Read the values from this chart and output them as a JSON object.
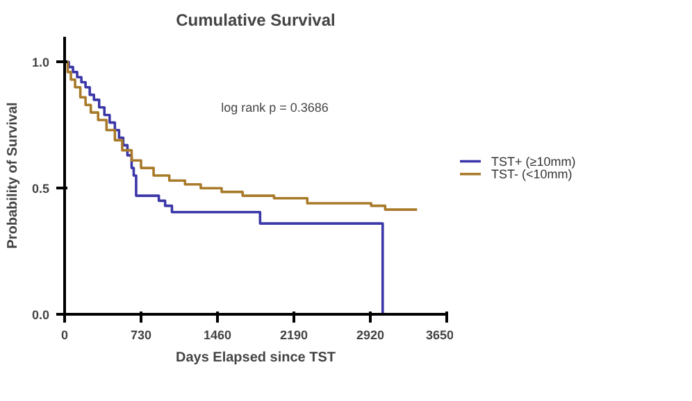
{
  "chart_data": {
    "type": "step",
    "title": "Cumulative Survival",
    "xlabel": "Days Elapsed since TST",
    "ylabel": "Probability of Survival",
    "xlim": [
      0,
      3650
    ],
    "ylim": [
      0,
      1.1
    ],
    "xticks": [
      0,
      730,
      1460,
      2190,
      2920,
      3650
    ],
    "yticks": [
      {
        "value": 0,
        "label": "0.0"
      },
      {
        "value": 0.5,
        "label": "0.5"
      },
      {
        "value": 1,
        "label": "1.0"
      }
    ],
    "annotations": [
      "log rank p = 0.3686"
    ],
    "legend": "right",
    "grid": false,
    "marker": "none",
    "line_style": "solid",
    "series": [
      {
        "name": "TST+ (≥10mm)",
        "color": "#3b37a8",
        "x": [
          0,
          40,
          80,
          120,
          160,
          200,
          240,
          280,
          330,
          380,
          430,
          480,
          520,
          560,
          600,
          640,
          660,
          683,
          900,
          960,
          1025,
          1867,
          3038
        ],
        "values": [
          1.0,
          0.98,
          0.96,
          0.94,
          0.92,
          0.9,
          0.87,
          0.85,
          0.82,
          0.79,
          0.76,
          0.73,
          0.7,
          0.67,
          0.63,
          0.58,
          0.55,
          0.47,
          0.45,
          0.43,
          0.405,
          0.36,
          0.0
        ]
      },
      {
        "name": "TST-  (<10mm)",
        "color": "#a87a2a",
        "x": [
          0,
          30,
          60,
          100,
          150,
          200,
          250,
          320,
          400,
          480,
          550,
          640,
          730,
          850,
          1000,
          1150,
          1300,
          1500,
          1700,
          2000,
          2318,
          2928,
          3062,
          3367
        ],
        "values": [
          1.0,
          0.96,
          0.93,
          0.9,
          0.86,
          0.83,
          0.8,
          0.77,
          0.73,
          0.69,
          0.65,
          0.61,
          0.58,
          0.55,
          0.53,
          0.515,
          0.5,
          0.485,
          0.47,
          0.46,
          0.44,
          0.43,
          0.415,
          0.415
        ]
      }
    ]
  }
}
